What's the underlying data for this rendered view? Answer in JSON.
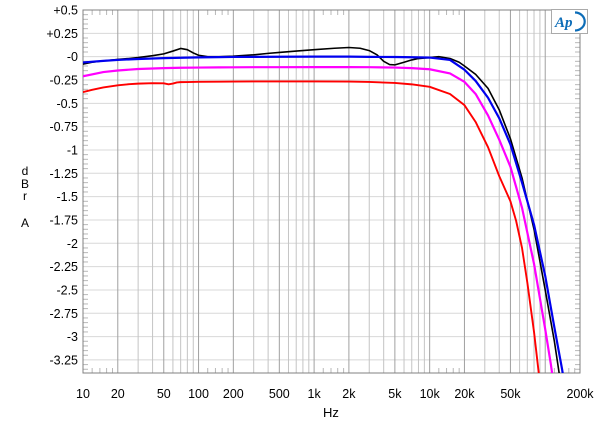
{
  "figure": {
    "background": "#ffffff"
  },
  "logo": {
    "text": "Ap",
    "color": "#0d6db8"
  },
  "chart_data": {
    "type": "line",
    "title": "",
    "xlabel": "Hz",
    "ylabel": "dBr",
    "ylabel_letters": [
      "d",
      "B",
      "r"
    ],
    "channel_label": "A",
    "x_scale": "log",
    "xlim": [
      10,
      200000
    ],
    "ylim": [
      0.5,
      -3.39
    ],
    "grid": true,
    "legend": "none",
    "colors": {
      "grid_vertical_major": "#a0a0a0",
      "grid_vertical_minor": "#c4c4c4",
      "grid_horizontal": "#d8d8d8",
      "minor_tick": "#b8b8b8",
      "frame": "#808080",
      "text": "#000000"
    },
    "x_ticks": [
      {
        "label": "10",
        "value": 10
      },
      {
        "label": "20",
        "value": 20
      },
      {
        "label": "50",
        "value": 50
      },
      {
        "label": "100",
        "value": 100
      },
      {
        "label": "200",
        "value": 200
      },
      {
        "label": "500",
        "value": 500
      },
      {
        "label": "1k",
        "value": 1000
      },
      {
        "label": "2k",
        "value": 2000
      },
      {
        "label": "5k",
        "value": 5000
      },
      {
        "label": "10k",
        "value": 10000
      },
      {
        "label": "20k",
        "value": 20000
      },
      {
        "label": "50k",
        "value": 50000
      },
      {
        "label": "200k",
        "value": 200000
      }
    ],
    "y_ticks": [
      {
        "label": "+0.5",
        "value": 0.5
      },
      {
        "label": "+0.25",
        "value": 0.25
      },
      {
        "label": "-0",
        "value": 0
      },
      {
        "label": "-0.25",
        "value": -0.25
      },
      {
        "label": "-0.5",
        "value": -0.5
      },
      {
        "label": "-0.75",
        "value": -0.75
      },
      {
        "label": "-1",
        "value": -1
      },
      {
        "label": "-1.25",
        "value": -1.25
      },
      {
        "label": "-1.5",
        "value": -1.5
      },
      {
        "label": "-1.75",
        "value": -1.75
      },
      {
        "label": "-2",
        "value": -2
      },
      {
        "label": "-2.25",
        "value": -2.25
      },
      {
        "label": "-2.5",
        "value": -2.5
      },
      {
        "label": "-2.75",
        "value": -2.75
      },
      {
        "label": "-3",
        "value": -3
      },
      {
        "label": "-3.25",
        "value": -3.25
      }
    ],
    "series": [
      {
        "name": "black-trace",
        "color": "#000000",
        "points": [
          [
            10,
            -0.08
          ],
          [
            12,
            -0.06
          ],
          [
            15,
            -0.045
          ],
          [
            20,
            -0.03
          ],
          [
            25,
            -0.02
          ],
          [
            30,
            -0.01
          ],
          [
            40,
            0.01
          ],
          [
            50,
            0.03
          ],
          [
            60,
            0.06
          ],
          [
            70,
            0.088
          ],
          [
            80,
            0.075
          ],
          [
            90,
            0.04
          ],
          [
            100,
            0.015
          ],
          [
            120,
            0.0
          ],
          [
            150,
            0.0
          ],
          [
            200,
            0.005
          ],
          [
            300,
            0.02
          ],
          [
            400,
            0.035
          ],
          [
            500,
            0.045
          ],
          [
            700,
            0.06
          ],
          [
            1000,
            0.075
          ],
          [
            1500,
            0.09
          ],
          [
            2000,
            0.098
          ],
          [
            2500,
            0.09
          ],
          [
            3000,
            0.065
          ],
          [
            3500,
            0.02
          ],
          [
            4000,
            -0.05
          ],
          [
            4500,
            -0.085
          ],
          [
            5000,
            -0.088
          ],
          [
            6000,
            -0.06
          ],
          [
            7000,
            -0.035
          ],
          [
            8000,
            -0.02
          ],
          [
            10000,
            -0.01
          ],
          [
            12000,
            0.0
          ],
          [
            15000,
            -0.02
          ],
          [
            18000,
            -0.06
          ],
          [
            20000,
            -0.1
          ],
          [
            25000,
            -0.19
          ],
          [
            32000,
            -0.34
          ],
          [
            40000,
            -0.57
          ],
          [
            50000,
            -0.88
          ],
          [
            63000,
            -1.3
          ],
          [
            80000,
            -1.85
          ],
          [
            100000,
            -2.5
          ],
          [
            120000,
            -3.05
          ],
          [
            138000,
            -3.55
          ]
        ]
      },
      {
        "name": "blue-trace",
        "color": "#0000ee",
        "points": [
          [
            10,
            -0.062
          ],
          [
            15,
            -0.045
          ],
          [
            20,
            -0.035
          ],
          [
            30,
            -0.025
          ],
          [
            50,
            -0.016
          ],
          [
            70,
            -0.012
          ],
          [
            100,
            -0.008
          ],
          [
            150,
            -0.005
          ],
          [
            200,
            -0.003
          ],
          [
            300,
            -0.002
          ],
          [
            500,
            -0.001
          ],
          [
            1000,
            0.0
          ],
          [
            2000,
            0.0
          ],
          [
            3000,
            -0.002
          ],
          [
            5000,
            -0.004
          ],
          [
            7000,
            -0.006
          ],
          [
            10000,
            -0.01
          ],
          [
            15000,
            -0.035
          ],
          [
            20000,
            -0.14
          ],
          [
            25000,
            -0.26
          ],
          [
            32000,
            -0.44
          ],
          [
            40000,
            -0.66
          ],
          [
            50000,
            -0.94
          ],
          [
            63000,
            -1.35
          ],
          [
            80000,
            -1.8
          ],
          [
            100000,
            -2.35
          ],
          [
            120000,
            -2.9
          ],
          [
            140000,
            -3.35
          ],
          [
            150000,
            -3.6
          ]
        ]
      },
      {
        "name": "magenta-trace",
        "color": "#ff00ff",
        "points": [
          [
            10,
            -0.21
          ],
          [
            15,
            -0.165
          ],
          [
            20,
            -0.148
          ],
          [
            30,
            -0.132
          ],
          [
            50,
            -0.123
          ],
          [
            70,
            -0.119
          ],
          [
            100,
            -0.117
          ],
          [
            150,
            -0.115
          ],
          [
            200,
            -0.114
          ],
          [
            300,
            -0.113
          ],
          [
            500,
            -0.113
          ],
          [
            1000,
            -0.112
          ],
          [
            2000,
            -0.112
          ],
          [
            3000,
            -0.113
          ],
          [
            5000,
            -0.117
          ],
          [
            7000,
            -0.123
          ],
          [
            10000,
            -0.135
          ],
          [
            15000,
            -0.18
          ],
          [
            20000,
            -0.27
          ],
          [
            25000,
            -0.4
          ],
          [
            32000,
            -0.63
          ],
          [
            40000,
            -0.89
          ],
          [
            50000,
            -1.18
          ],
          [
            63000,
            -1.62
          ],
          [
            80000,
            -2.22
          ],
          [
            100000,
            -2.92
          ],
          [
            112000,
            -3.3
          ],
          [
            121000,
            -3.6
          ]
        ]
      },
      {
        "name": "red-trace",
        "color": "#ff0000",
        "points": [
          [
            10,
            -0.38
          ],
          [
            12,
            -0.355
          ],
          [
            15,
            -0.33
          ],
          [
            20,
            -0.307
          ],
          [
            25,
            -0.295
          ],
          [
            30,
            -0.289
          ],
          [
            40,
            -0.284
          ],
          [
            50,
            -0.286
          ],
          [
            55,
            -0.296
          ],
          [
            60,
            -0.288
          ],
          [
            65,
            -0.276
          ],
          [
            70,
            -0.273
          ],
          [
            80,
            -0.272
          ],
          [
            100,
            -0.27
          ],
          [
            150,
            -0.268
          ],
          [
            200,
            -0.267
          ],
          [
            300,
            -0.266
          ],
          [
            500,
            -0.266
          ],
          [
            1000,
            -0.266
          ],
          [
            2000,
            -0.267
          ],
          [
            3000,
            -0.271
          ],
          [
            5000,
            -0.282
          ],
          [
            7000,
            -0.297
          ],
          [
            10000,
            -0.323
          ],
          [
            15000,
            -0.4
          ],
          [
            20000,
            -0.52
          ],
          [
            25000,
            -0.7
          ],
          [
            32000,
            -0.97
          ],
          [
            40000,
            -1.28
          ],
          [
            50000,
            -1.55
          ],
          [
            56000,
            -1.76
          ],
          [
            63000,
            -2.05
          ],
          [
            70000,
            -2.42
          ],
          [
            80000,
            -2.95
          ],
          [
            90000,
            -3.5
          ]
        ]
      }
    ]
  }
}
